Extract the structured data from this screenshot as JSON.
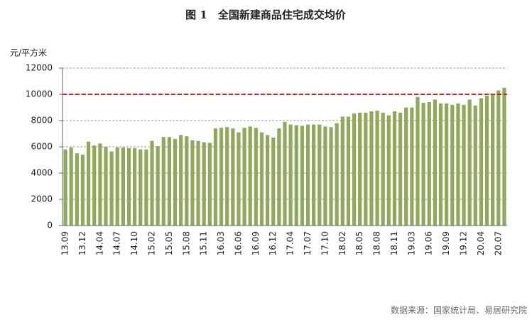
{
  "chart_data": {
    "type": "bar",
    "title": "图 1　全国新建商品住宅成交均价",
    "y_axis_label": "元/平方米",
    "source": "数据来源：国家统计局、易居研究院",
    "color": "#8fa85a",
    "grid": true,
    "reference_line": {
      "value": 10000,
      "color": "#c0282a"
    },
    "ylim": [
      0,
      12000
    ],
    "yticks": [
      0,
      2000,
      4000,
      6000,
      8000,
      10000,
      12000
    ],
    "categories": [
      "13.09",
      null,
      null,
      "13.12",
      null,
      null,
      "14.04",
      null,
      null,
      "14.07",
      null,
      null,
      "14.10",
      null,
      null,
      "15.02",
      null,
      null,
      "15.05",
      null,
      null,
      "15.08",
      null,
      null,
      "15.11",
      null,
      null,
      "16.03",
      null,
      null,
      "16.06",
      null,
      null,
      "16.09",
      null,
      null,
      "16.12",
      null,
      null,
      "17.04",
      null,
      null,
      "17.07",
      null,
      null,
      "17.10",
      null,
      null,
      "18.02",
      null,
      null,
      "18.05",
      null,
      null,
      "18.08",
      null,
      null,
      "18.11",
      null,
      null,
      "19.03",
      null,
      null,
      "19.06",
      null,
      null,
      "19.09",
      null,
      null,
      "19.12",
      null,
      null,
      "20.04",
      null,
      null,
      "20.07",
      null
    ],
    "values": [
      5800,
      5950,
      5500,
      5400,
      6400,
      6100,
      6250,
      6000,
      5650,
      5950,
      5950,
      5900,
      5900,
      5800,
      5800,
      6450,
      6050,
      6750,
      6750,
      6600,
      6900,
      6800,
      6500,
      6450,
      6350,
      6300,
      7400,
      7450,
      7500,
      7400,
      7100,
      7450,
      7550,
      7450,
      7100,
      6900,
      6700,
      7400,
      7900,
      7700,
      7650,
      7600,
      7700,
      7700,
      7700,
      7550,
      7500,
      7800,
      8300,
      8300,
      8550,
      8600,
      8600,
      8700,
      8750,
      8600,
      8400,
      8700,
      8600,
      9000,
      9000,
      9800,
      9350,
      9400,
      9600,
      9300,
      9300,
      9200,
      9300,
      9200,
      9600,
      9150,
      9700,
      9900,
      10000,
      10300,
      10500
    ]
  }
}
